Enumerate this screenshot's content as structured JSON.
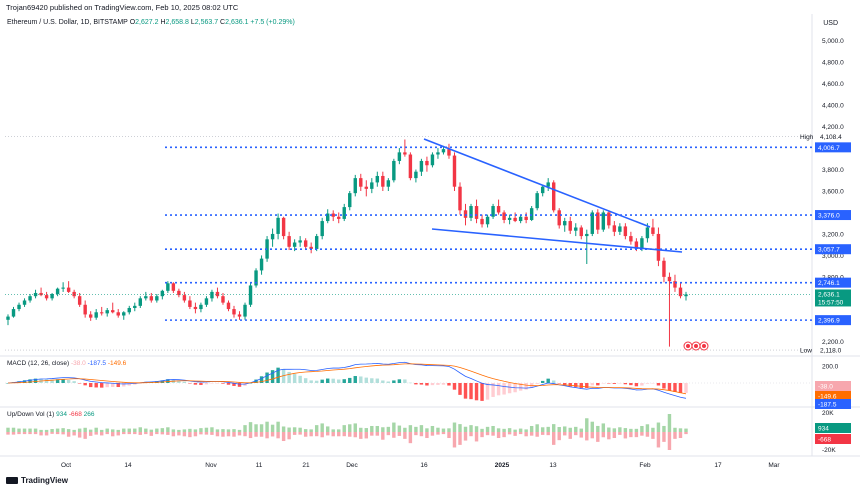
{
  "header": {
    "publisher": "Trojan69420 published on TradingView.com, Feb 10, 2025 08:02 UTC",
    "currency": "USD"
  },
  "legend": {
    "symbol": "Ethereum / U.S. Dollar, 1D, BITSTAMP",
    "o_label": "O",
    "o_value": "2,627.2",
    "h_label": "H",
    "h_value": "2,658.8",
    "l_label": "L",
    "l_value": "2,563.7",
    "c_label": "C",
    "c_value": "2,636.1",
    "change": "+7.5 (+0.29%)"
  },
  "macd_legend": {
    "name": "MACD (12, 26, close)",
    "v1": "-38.0",
    "v2": "-187.5",
    "v3": "-149.6"
  },
  "vol_legend": {
    "name": "Up/Down Vol (1)",
    "v1": "934",
    "v2": "-668",
    "v3": "266"
  },
  "brand": "TradingView",
  "colors": {
    "up": "#089981",
    "down": "#f23645",
    "blue": "#2962ff",
    "macd_line": "#2962ff",
    "signal_line": "#ff6d00",
    "grid": "#e0e3eb"
  },
  "chart_data": [
    {
      "type": "candlestick",
      "title": "Ethereum / U.S. Dollar, 1D, BITSTAMP",
      "x_ticks": [
        "Oct",
        "14",
        "Nov",
        "11",
        "21",
        "Dec",
        "16",
        "2025",
        "13",
        "Feb",
        "17",
        "Mar"
      ],
      "y_ticks": [
        "5,000.0",
        "4,800.0",
        "4,600.0",
        "4,400.0",
        "4,200.0",
        "4,000.0",
        "3,800.0",
        "3,600.0",
        "3,400.0",
        "3,200.0",
        "3,000.0",
        "2,800.0",
        "2,600.0",
        "2,400.0",
        "2,200.0"
      ],
      "ylim": [
        2100,
        5100
      ],
      "candles": [
        [
          2400,
          2450,
          2350,
          2430
        ],
        [
          2430,
          2520,
          2420,
          2500
        ],
        [
          2500,
          2560,
          2480,
          2540
        ],
        [
          2540,
          2600,
          2520,
          2580
        ],
        [
          2580,
          2640,
          2560,
          2620
        ],
        [
          2620,
          2680,
          2600,
          2650
        ],
        [
          2650,
          2700,
          2620,
          2630
        ],
        [
          2630,
          2660,
          2580,
          2600
        ],
        [
          2600,
          2650,
          2580,
          2640
        ],
        [
          2640,
          2700,
          2620,
          2690
        ],
        [
          2690,
          2750,
          2660,
          2700
        ],
        [
          2700,
          2760,
          2650,
          2660
        ],
        [
          2660,
          2680,
          2600,
          2620
        ],
        [
          2620,
          2650,
          2520,
          2540
        ],
        [
          2540,
          2580,
          2420,
          2450
        ],
        [
          2450,
          2480,
          2390,
          2420
        ],
        [
          2420,
          2500,
          2400,
          2470
        ],
        [
          2470,
          2520,
          2440,
          2460
        ],
        [
          2460,
          2510,
          2430,
          2490
        ],
        [
          2490,
          2560,
          2460,
          2470
        ],
        [
          2470,
          2500,
          2420,
          2440
        ],
        [
          2440,
          2480,
          2400,
          2470
        ],
        [
          2470,
          2530,
          2450,
          2510
        ],
        [
          2510,
          2560,
          2480,
          2530
        ],
        [
          2530,
          2620,
          2510,
          2600
        ],
        [
          2600,
          2660,
          2580,
          2620
        ],
        [
          2620,
          2650,
          2560,
          2580
        ],
        [
          2580,
          2640,
          2560,
          2620
        ],
        [
          2620,
          2680,
          2590,
          2670
        ],
        [
          2670,
          2760,
          2650,
          2740
        ],
        [
          2740,
          2750,
          2650,
          2670
        ],
        [
          2670,
          2690,
          2610,
          2630
        ],
        [
          2630,
          2660,
          2560,
          2580
        ],
        [
          2580,
          2620,
          2500,
          2520
        ],
        [
          2520,
          2560,
          2460,
          2500
        ],
        [
          2500,
          2560,
          2470,
          2540
        ],
        [
          2540,
          2620,
          2520,
          2600
        ],
        [
          2600,
          2680,
          2570,
          2660
        ],
        [
          2660,
          2700,
          2600,
          2620
        ],
        [
          2620,
          2650,
          2540,
          2560
        ],
        [
          2560,
          2580,
          2480,
          2500
        ],
        [
          2500,
          2530,
          2420,
          2450
        ],
        [
          2450,
          2480,
          2400,
          2430
        ],
        [
          2430,
          2560,
          2400,
          2540
        ],
        [
          2540,
          2750,
          2520,
          2720
        ],
        [
          2720,
          2880,
          2700,
          2860
        ],
        [
          2860,
          3000,
          2820,
          2970
        ],
        [
          2970,
          3180,
          2940,
          3150
        ],
        [
          3150,
          3250,
          3080,
          3200
        ],
        [
          3200,
          3390,
          3150,
          3350
        ],
        [
          3350,
          3360,
          3150,
          3180
        ],
        [
          3180,
          3220,
          3050,
          3080
        ],
        [
          3080,
          3150,
          3040,
          3120
        ],
        [
          3120,
          3180,
          3080,
          3140
        ],
        [
          3140,
          3160,
          3050,
          3080
        ],
        [
          3080,
          3120,
          3020,
          3060
        ],
        [
          3060,
          3200,
          3040,
          3180
        ],
        [
          3180,
          3350,
          3150,
          3320
        ],
        [
          3320,
          3430,
          3300,
          3390
        ],
        [
          3390,
          3420,
          3320,
          3360
        ],
        [
          3360,
          3400,
          3300,
          3340
        ],
        [
          3340,
          3480,
          3320,
          3450
        ],
        [
          3450,
          3600,
          3420,
          3580
        ],
        [
          3580,
          3750,
          3550,
          3720
        ],
        [
          3720,
          3760,
          3600,
          3640
        ],
        [
          3640,
          3700,
          3550,
          3620
        ],
        [
          3620,
          3720,
          3580,
          3680
        ],
        [
          3680,
          3780,
          3640,
          3740
        ],
        [
          3740,
          3780,
          3600,
          3640
        ],
        [
          3640,
          3720,
          3600,
          3700
        ],
        [
          3700,
          3900,
          3680,
          3880
        ],
        [
          3880,
          4000,
          3850,
          3960
        ],
        [
          3960,
          4080,
          3920,
          3940
        ],
        [
          3940,
          3960,
          3700,
          3720
        ],
        [
          3720,
          3800,
          3680,
          3780
        ],
        [
          3780,
          3900,
          3740,
          3880
        ],
        [
          3880,
          3920,
          3780,
          3840
        ],
        [
          3840,
          3960,
          3820,
          3940
        ],
        [
          3940,
          4000,
          3900,
          3960
        ],
        [
          3960,
          4020,
          3940,
          3990
        ],
        [
          3990,
          4040,
          3900,
          3930
        ],
        [
          3930,
          3960,
          3600,
          3640
        ],
        [
          3640,
          3680,
          3380,
          3420
        ],
        [
          3420,
          3480,
          3280,
          3350
        ],
        [
          3350,
          3480,
          3320,
          3460
        ],
        [
          3460,
          3520,
          3300,
          3340
        ],
        [
          3340,
          3380,
          3260,
          3290
        ],
        [
          3290,
          3380,
          3260,
          3360
        ],
        [
          3360,
          3480,
          3340,
          3460
        ],
        [
          3460,
          3520,
          3380,
          3400
        ],
        [
          3400,
          3420,
          3300,
          3330
        ],
        [
          3330,
          3380,
          3290,
          3350
        ],
        [
          3350,
          3400,
          3310,
          3320
        ],
        [
          3320,
          3380,
          3300,
          3360
        ],
        [
          3360,
          3400,
          3300,
          3330
        ],
        [
          3330,
          3460,
          3320,
          3440
        ],
        [
          3440,
          3600,
          3420,
          3580
        ],
        [
          3580,
          3660,
          3550,
          3640
        ],
        [
          3640,
          3720,
          3600,
          3680
        ],
        [
          3680,
          3700,
          3400,
          3420
        ],
        [
          3420,
          3440,
          3250,
          3280
        ],
        [
          3280,
          3350,
          3220,
          3320
        ],
        [
          3320,
          3360,
          3200,
          3230
        ],
        [
          3230,
          3300,
          3180,
          3260
        ],
        [
          3260,
          3280,
          3150,
          3180
        ],
        [
          3180,
          3240,
          2920,
          3200
        ],
        [
          3200,
          3420,
          3180,
          3400
        ],
        [
          3400,
          3430,
          3200,
          3240
        ],
        [
          3240,
          3420,
          3220,
          3400
        ],
        [
          3400,
          3420,
          3250,
          3280
        ],
        [
          3280,
          3320,
          3180,
          3220
        ],
        [
          3220,
          3300,
          3190,
          3270
        ],
        [
          3270,
          3300,
          3150,
          3180
        ],
        [
          3180,
          3220,
          3100,
          3130
        ],
        [
          3130,
          3160,
          3040,
          3060
        ],
        [
          3060,
          3180,
          3040,
          3160
        ],
        [
          3160,
          3300,
          3120,
          3260
        ],
        [
          3260,
          3340,
          3180,
          3200
        ],
        [
          3200,
          3260,
          2900,
          2950
        ],
        [
          2950,
          2980,
          2750,
          2800
        ],
        [
          2800,
          2840,
          2150,
          2760
        ],
        [
          2760,
          2820,
          2660,
          2700
        ],
        [
          2700,
          2740,
          2600,
          2620
        ],
        [
          2620,
          2660,
          2580,
          2636
        ]
      ],
      "levels": [
        {
          "label": "High",
          "value": "4,108.4",
          "price": 4108.4
        },
        {
          "value": "4,006.7",
          "price": 4006.7
        },
        {
          "value": "3,376.0",
          "price": 3376
        },
        {
          "value": "3,057.7",
          "price": 3057.7
        },
        {
          "value": "2,746.1",
          "price": 2746.1
        },
        {
          "value": "2,636.1",
          "price": 2636.1,
          "countdown": "15:57:50"
        },
        {
          "value": "2,396.9",
          "price": 2396.9
        },
        {
          "label": "Low",
          "value": "2,118.0",
          "price": 2118
        }
      ]
    },
    {
      "type": "macd",
      "title": "MACD (12, 26, close)",
      "y_ticks": [
        "200.0"
      ],
      "ylim": [
        -250,
        250
      ],
      "hist_tags": [
        "-38.0",
        "-149.6",
        "-187.5"
      ]
    },
    {
      "type": "bar",
      "title": "Up/Down Vol (1)",
      "y_ticks": [
        "20K",
        "-20K"
      ],
      "tags": [
        "934",
        "-668"
      ]
    }
  ]
}
